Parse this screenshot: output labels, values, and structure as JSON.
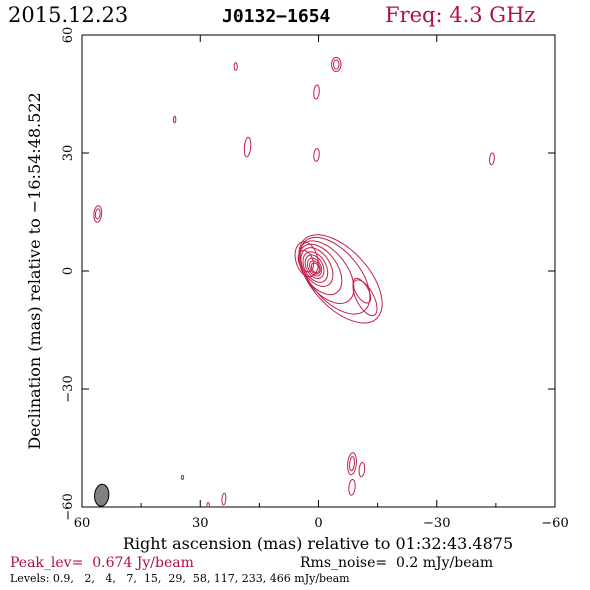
{
  "header": {
    "date": "2015.12.23",
    "source": "J0132−1654",
    "freq": "Freq: 4.3 GHz"
  },
  "footer": {
    "peak": "Peak_lev=  0.674 Jy/beam",
    "rms": "Rms_noise=  0.2 mJy/beam",
    "levels": "Levels: 0.9,   2,   4,   7,  15,  29,  58, 117, 233, 466 mJy/beam"
  },
  "colors": {
    "contour": "#c0204a",
    "title_red": "#b01040",
    "beam": "#808080",
    "axes": "#000000"
  },
  "chart_data": {
    "type": "contour",
    "xlabel": "Right ascension (mas) relative to 01:32:43.4875",
    "ylabel": "Declination (mas) relative to −16:54:48.522",
    "xlim": [
      60,
      -60
    ],
    "ylim": [
      -60,
      60
    ],
    "xticks": [
      60,
      30,
      0,
      -30,
      -60
    ],
    "yticks": [
      -60,
      -30,
      0,
      30,
      60
    ],
    "xtick_labels": [
      "60",
      "30",
      "0",
      "−30",
      "−60"
    ],
    "ytick_labels": [
      "−60",
      "−30",
      "0",
      "30",
      "60"
    ],
    "levels_mJy": [
      0.9,
      2,
      4,
      7,
      15,
      29,
      58,
      117,
      233,
      466
    ],
    "beam": {
      "x": 55,
      "y": -57,
      "major_mas": 2.8,
      "minor_mas": 1.8,
      "pa_deg": 5
    },
    "core_series": [
      {
        "cx": 0.8,
        "cy": 0.8,
        "major": 1.3,
        "minor": 0.9,
        "angle": 60
      },
      {
        "cx": 0.9,
        "cy": 0.9,
        "major": 1.8,
        "minor": 1.2,
        "angle": 60
      },
      {
        "cx": 1.0,
        "cy": 1.0,
        "major": 2.4,
        "minor": 1.6,
        "angle": 62
      },
      {
        "cx": 1.0,
        "cy": 1.1,
        "major": 3.2,
        "minor": 2.1,
        "angle": 62
      },
      {
        "cx": 0.8,
        "cy": 1.0,
        "major": 4.2,
        "minor": 2.7,
        "angle": 60
      },
      {
        "cx": 0.4,
        "cy": 1.0,
        "major": 5.4,
        "minor": 3.4,
        "angle": 58
      },
      {
        "cx": -0.5,
        "cy": 0.4,
        "major": 7.2,
        "minor": 4.3,
        "angle": 55
      },
      {
        "cx": -2.0,
        "cy": -0.3,
        "major": 9.2,
        "minor": 5.2,
        "angle": 52
      },
      {
        "cx": -4.2,
        "cy": -1.2,
        "major": 11.6,
        "minor": 6.2,
        "angle": 50
      },
      {
        "cx": -5.6,
        "cy": -2.0,
        "major": 13.6,
        "minor": 7.2,
        "angle": 48
      }
    ],
    "jet_series": [
      {
        "cx": -11.0,
        "cy": -5.0,
        "major": 3.5,
        "minor": 1.6,
        "angle": 60
      },
      {
        "cx": -11.8,
        "cy": -6.8,
        "major": 5.0,
        "minor": 2.2,
        "angle": 62
      },
      {
        "cx": 3.2,
        "cy": 2.5,
        "major": 2.8,
        "minor": 1.8,
        "angle": 70
      },
      {
        "cx": 3.0,
        "cy": 3.0,
        "major": 4.5,
        "minor": 2.8,
        "angle": 75
      }
    ],
    "isolated_components": [
      {
        "x": 21,
        "y": 52,
        "major": 1.0,
        "minor": 0.4,
        "angle": 90
      },
      {
        "x": 36.5,
        "y": 38.5,
        "major": 0.8,
        "minor": 0.3,
        "angle": 90
      },
      {
        "x": 18,
        "y": 31.5,
        "major": 2.5,
        "minor": 0.8,
        "angle": 95
      },
      {
        "x": 0.5,
        "y": 29.5,
        "major": 1.6,
        "minor": 0.7,
        "angle": 95
      },
      {
        "x": 0.5,
        "y": 45.5,
        "major": 1.8,
        "minor": 0.7,
        "angle": 95
      },
      {
        "x": -4.5,
        "y": 52.5,
        "major": 1.8,
        "minor": 1.2,
        "angle": 90
      },
      {
        "x": -4.5,
        "y": 52.5,
        "major": 1.2,
        "minor": 0.7,
        "angle": 90
      },
      {
        "x": -44,
        "y": 28.5,
        "major": 1.5,
        "minor": 0.6,
        "angle": 95
      },
      {
        "x": 56,
        "y": 14.5,
        "major": 2.1,
        "minor": 1.0,
        "angle": 95
      },
      {
        "x": 56,
        "y": 14.5,
        "major": 1.3,
        "minor": 0.6,
        "angle": 95
      },
      {
        "x": 34.5,
        "y": -52.5,
        "major": 0.5,
        "minor": 0.3,
        "angle": 90
      },
      {
        "x": 28,
        "y": -59.5,
        "major": 0.6,
        "minor": 0.3,
        "angle": 90
      },
      {
        "x": 24,
        "y": -58,
        "major": 1.5,
        "minor": 0.5,
        "angle": 95
      },
      {
        "x": -8.5,
        "y": -49,
        "major": 2.8,
        "minor": 1.1,
        "angle": 95
      },
      {
        "x": -8.5,
        "y": -49,
        "major": 1.8,
        "minor": 0.6,
        "angle": 95
      },
      {
        "x": -8.5,
        "y": -55,
        "major": 2.0,
        "minor": 0.8,
        "angle": 95
      },
      {
        "x": -11,
        "y": -50.5,
        "major": 1.8,
        "minor": 0.7,
        "angle": 95
      }
    ]
  }
}
